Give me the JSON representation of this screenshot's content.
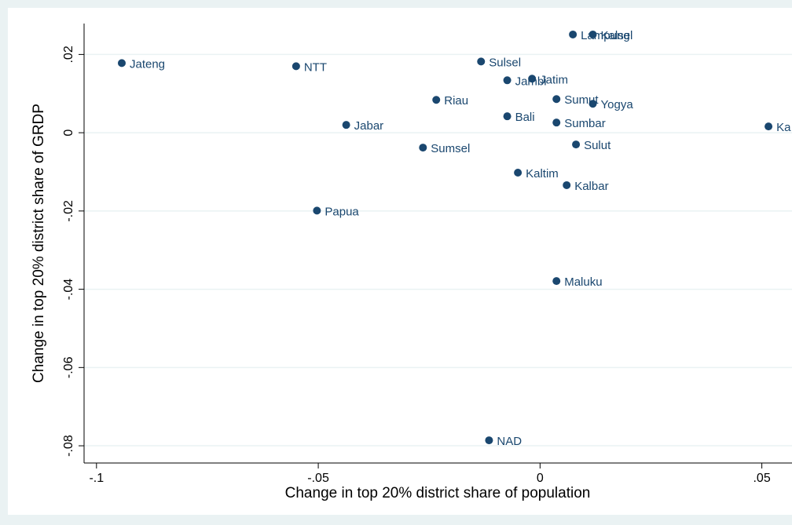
{
  "chart_data": {
    "type": "scatter",
    "x_label": "Change in top 20% district share of population",
    "y_label": "Change in top 20% district share of GRDP",
    "labels": [
      "Jateng",
      "NTT",
      "Jabar",
      "Papua",
      "Sumsel",
      "Riau",
      "Sulsel",
      "Jambi",
      "Bali",
      "Kaltim",
      "NAD",
      "Jatim",
      "Lampung",
      "Kalsel",
      "Sumut",
      "Sumbar",
      "Yogya",
      "Sulut",
      "Kalbar",
      "Maluku",
      "Ka"
    ],
    "x": [
      -0.0943,
      -0.055,
      -0.0437,
      -0.0503,
      -0.0264,
      -0.0234,
      -0.0133,
      -0.0074,
      -0.0074,
      -0.005,
      -0.0115,
      -0.0018,
      0.0074,
      0.0119,
      0.0037,
      0.0037,
      0.0119,
      0.0081,
      0.006,
      0.0037,
      0.0515
    ],
    "values": [
      0.0178,
      0.017,
      0.002,
      -0.0199,
      -0.0038,
      0.0084,
      0.0182,
      0.0134,
      0.0042,
      -0.0102,
      -0.0786,
      0.0138,
      0.0251,
      0.0251,
      0.0086,
      0.0026,
      0.0074,
      -0.003,
      -0.0134,
      -0.0379,
      0.0016
    ],
    "color": "#1a476f",
    "xlim": [
      -0.1028,
      0.0568
    ],
    "ylim": [
      -0.0844,
      0.0279
    ],
    "xticks": [
      {
        "value": -0.1,
        "label": "-.1"
      },
      {
        "value": -0.05,
        "label": "-.05"
      },
      0,
      {
        "value": 0.05,
        "label": ".05"
      }
    ],
    "yticks": [
      {
        "value": -0.08,
        "label": "-.08"
      },
      {
        "value": -0.06,
        "label": "-.06"
      },
      {
        "value": -0.04,
        "label": "-.04"
      },
      {
        "value": -0.02,
        "label": "-.02"
      },
      0,
      {
        "value": 0.02,
        "label": ".02"
      }
    ],
    "grid": true
  }
}
